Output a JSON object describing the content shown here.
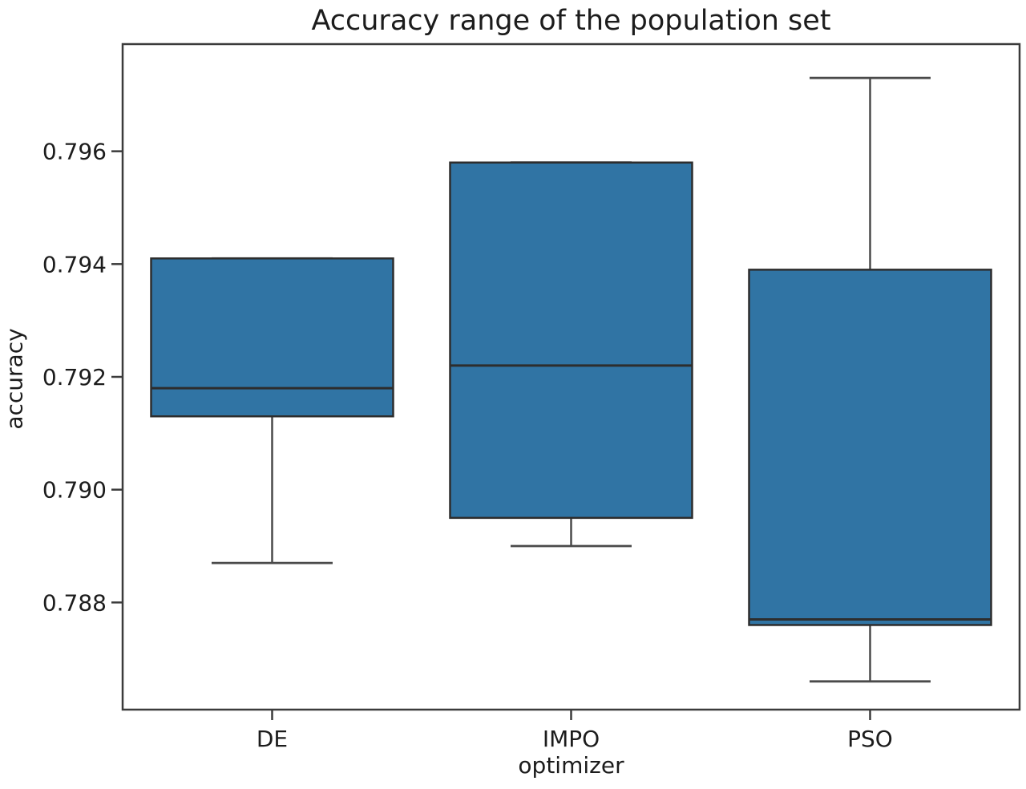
{
  "chart_data": {
    "type": "boxplot",
    "title": "Accuracy range of the population set",
    "xlabel": "optimizer",
    "ylabel": "accuracy",
    "categories": [
      "DE",
      "IMPO",
      "PSO"
    ],
    "series": [
      {
        "name": "DE",
        "whisker_low": 0.7887,
        "q1": 0.7913,
        "median": 0.7918,
        "q3": 0.7941,
        "whisker_high": 0.7941
      },
      {
        "name": "IMPO",
        "whisker_low": 0.789,
        "q1": 0.7895,
        "median": 0.7922,
        "q3": 0.7958,
        "whisker_high": 0.7958
      },
      {
        "name": "PSO",
        "whisker_low": 0.7866,
        "q1": 0.7876,
        "median": 0.7877,
        "q3": 0.7939,
        "whisker_high": 0.7973
      }
    ],
    "ytick_labels": [
      "0.796",
      "0.794",
      "0.792",
      "0.790",
      "0.788"
    ],
    "ytick_values": [
      0.796,
      0.794,
      0.792,
      0.79,
      0.788
    ],
    "ylim": [
      0.7861,
      0.7979
    ],
    "grid": false,
    "legend": null,
    "colors": {
      "box_fill": "#3074a4",
      "box_edge": "#2d2d2d",
      "median_line": "#2d2d2d",
      "whisker": "#4a4a4a",
      "spine": "#3b3b3b",
      "tick_text": "#1c1c1c",
      "background": "#ffffff"
    }
  }
}
